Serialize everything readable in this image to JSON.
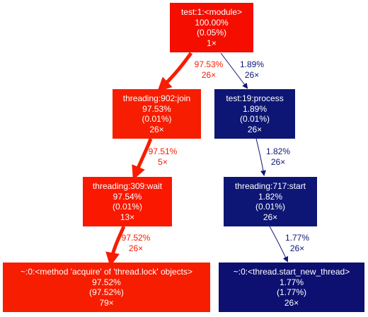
{
  "colors": {
    "hot": "#f50e00",
    "hot_medium": "#f61d00",
    "hot_bright": "#fa1800",
    "cold": "#0d1674",
    "cold_dark": "#0d1070"
  },
  "nodes": {
    "module": {
      "name": "test:1:<module>",
      "total": "100.00%",
      "self": "(0.05%)",
      "calls": "1×"
    },
    "join": {
      "name": "threading:902:join",
      "total": "97.53%",
      "self": "(0.01%)",
      "calls": "26×"
    },
    "process": {
      "name": "test:19:process",
      "total": "1.89%",
      "self": "(0.01%)",
      "calls": "26×"
    },
    "wait": {
      "name": "threading:309:wait",
      "total": "97.54%",
      "self": "(0.01%)",
      "calls": "13×"
    },
    "start": {
      "name": "threading:717:start",
      "total": "1.82%",
      "self": "(0.01%)",
      "calls": "26×"
    },
    "acquire": {
      "name": "~:0:<method 'acquire' of 'thread.lock' objects>",
      "total": "97.52%",
      "self": "(97.52%)",
      "calls": "79×"
    },
    "new_thread": {
      "name": "~:0:<thread.start_new_thread>",
      "total": "1.77%",
      "self": "(1.77%)",
      "calls": "26×"
    }
  },
  "edges": {
    "module_join": {
      "pct": "97.53%",
      "calls": "26×"
    },
    "module_process": {
      "pct": "1.89%",
      "calls": "26×"
    },
    "join_wait": {
      "pct": "97.51%",
      "calls": "5×"
    },
    "process_start": {
      "pct": "1.82%",
      "calls": "26×"
    },
    "wait_acquire": {
      "pct": "97.52%",
      "calls": "26×"
    },
    "start_new_thread": {
      "pct": "1.77%",
      "calls": "26×"
    }
  }
}
